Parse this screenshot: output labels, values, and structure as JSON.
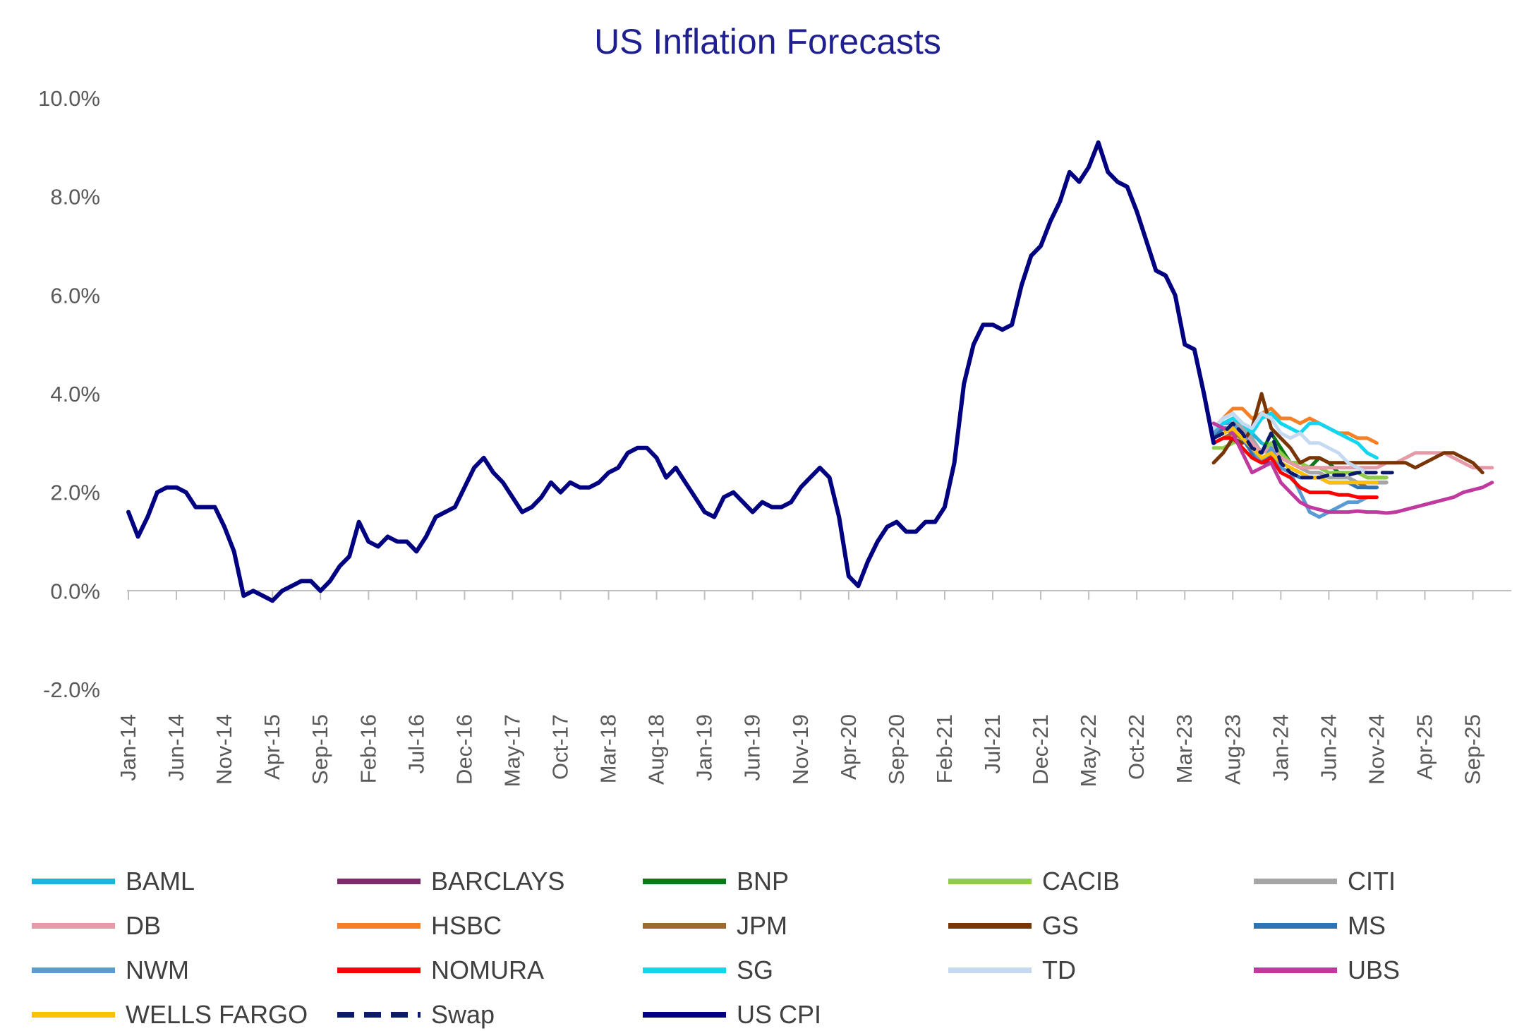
{
  "chart_data": {
    "type": "line",
    "title": "US Inflation Forecasts",
    "xlabel": "",
    "ylabel": "",
    "ylim": [
      -2.0,
      10.0
    ],
    "y_ticks": [
      "10.0%",
      "8.0%",
      "6.0%",
      "4.0%",
      "2.0%",
      "0.0%",
      "-2.0%"
    ],
    "x_range": [
      "2014-01",
      "2026-01"
    ],
    "x_ticks": [
      "Jan-14",
      "Jun-14",
      "Nov-14",
      "Apr-15",
      "Sep-15",
      "Feb-16",
      "Jul-16",
      "Dec-16",
      "May-17",
      "Oct-17",
      "Mar-18",
      "Aug-18",
      "Jan-19",
      "Jun-19",
      "Nov-19",
      "Apr-20",
      "Sep-20",
      "Feb-21",
      "Jul-21",
      "Dec-21",
      "May-22",
      "Oct-22",
      "Mar-23",
      "Aug-23",
      "Jan-24",
      "Jun-24",
      "Nov-24",
      "Apr-25",
      "Sep-25"
    ],
    "grid": false,
    "legend_position": "bottom",
    "series": [
      {
        "name": "BAML",
        "color": "#1fb5d6",
        "dash": false,
        "start": "2023-06",
        "values": [
          3.3,
          3.5,
          3.6,
          3.4,
          3.2,
          3.0,
          2.9,
          2.7,
          2.6,
          2.5,
          2.4,
          2.4,
          2.3,
          2.3,
          2.3,
          2.2,
          2.2,
          2.2,
          2.2
        ]
      },
      {
        "name": "BARCLAYS",
        "color": "#7b2a6b",
        "dash": false,
        "start": "2023-06",
        "values": [
          3.2,
          3.3,
          3.3,
          3.1,
          2.8,
          2.6,
          2.6,
          2.5,
          2.4,
          2.3,
          2.3,
          2.3,
          2.2,
          2.2,
          2.2,
          2.2,
          2.2,
          2.2,
          2.2
        ]
      },
      {
        "name": "BNP",
        "color": "#0a7a18",
        "dash": false,
        "start": "2023-06",
        "values": [
          3.1,
          3.2,
          3.3,
          3.2,
          2.9,
          2.8,
          3.2,
          2.9,
          2.6,
          2.6,
          2.5,
          2.7,
          2.6,
          2.4,
          2.4,
          2.4,
          2.3,
          2.3,
          2.3
        ]
      },
      {
        "name": "CACIB",
        "color": "#8fcc4b",
        "dash": false,
        "start": "2023-06",
        "values": [
          2.9,
          2.9,
          3.0,
          3.1,
          2.9,
          2.8,
          3.0,
          2.8,
          2.6,
          2.6,
          2.5,
          2.5,
          2.4,
          2.4,
          2.4,
          2.4,
          2.3,
          2.3,
          2.3
        ]
      },
      {
        "name": "CITI",
        "color": "#a6a6a6",
        "dash": false,
        "start": "2023-06",
        "values": [
          3.3,
          3.4,
          3.5,
          3.3,
          3.1,
          2.8,
          2.9,
          2.7,
          2.6,
          2.5,
          2.4,
          2.4,
          2.3,
          2.3,
          2.3,
          2.2,
          2.2,
          2.2,
          2.2
        ]
      },
      {
        "name": "DB",
        "color": "#e59aa8",
        "dash": false,
        "start": "2023-06",
        "values": [
          3.3,
          3.4,
          3.4,
          3.2,
          3.0,
          2.8,
          2.9,
          2.7,
          2.6,
          2.5,
          2.5,
          2.5,
          2.5,
          2.5,
          2.5,
          2.5,
          2.5,
          2.5,
          2.6,
          2.6,
          2.7,
          2.8,
          2.8,
          2.8,
          2.8,
          2.7,
          2.6,
          2.5,
          2.5,
          2.5
        ]
      },
      {
        "name": "HSBC",
        "color": "#f58025",
        "dash": false,
        "start": "2023-06",
        "values": [
          3.3,
          3.5,
          3.7,
          3.7,
          3.5,
          3.6,
          3.7,
          3.5,
          3.5,
          3.4,
          3.5,
          3.4,
          3.3,
          3.2,
          3.2,
          3.1,
          3.1,
          3.0
        ]
      },
      {
        "name": "JPM",
        "color": "#9c6a2e",
        "dash": false,
        "start": "2023-06",
        "values": [
          3.0,
          3.1,
          3.2,
          3.1,
          2.8,
          2.6,
          2.8,
          2.6,
          2.5,
          2.4,
          2.3,
          2.3,
          2.2,
          2.2,
          2.2,
          2.2,
          2.1,
          2.1
        ]
      },
      {
        "name": "GS",
        "color": "#7a3506",
        "dash": false,
        "start": "2023-06",
        "values": [
          2.6,
          2.8,
          3.1,
          3.0,
          3.3,
          4.0,
          3.3,
          3.1,
          2.9,
          2.6,
          2.7,
          2.7,
          2.6,
          2.6,
          2.6,
          2.6,
          2.6,
          2.6,
          2.6,
          2.6,
          2.6,
          2.5,
          2.6,
          2.7,
          2.8,
          2.8,
          2.7,
          2.6,
          2.4
        ]
      },
      {
        "name": "MS",
        "color": "#2e74b5",
        "dash": false,
        "start": "2023-06",
        "values": [
          3.1,
          3.3,
          3.3,
          3.1,
          2.8,
          2.6,
          2.8,
          2.5,
          2.4,
          2.3,
          2.3,
          2.3,
          2.2,
          2.2,
          2.2,
          2.1,
          2.1,
          2.1
        ]
      },
      {
        "name": "NWM",
        "color": "#5b9bd5",
        "dash": false,
        "start": "2023-06",
        "values": [
          3.2,
          3.4,
          3.4,
          3.2,
          2.9,
          2.6,
          2.9,
          2.5,
          2.4,
          2.0,
          1.6,
          1.5,
          1.6,
          1.7,
          1.8,
          1.8,
          1.9
        ]
      },
      {
        "name": "NOMURA",
        "color": "#ff0000",
        "dash": false,
        "start": "2023-06",
        "values": [
          3.0,
          3.1,
          3.1,
          2.9,
          2.7,
          2.6,
          2.7,
          2.4,
          2.3,
          2.1,
          2.0,
          2.0,
          2.0,
          1.95,
          1.95,
          1.9,
          1.9,
          1.9
        ]
      },
      {
        "name": "SG",
        "color": "#12d6ef",
        "dash": false,
        "start": "2023-06",
        "values": [
          3.3,
          3.4,
          3.5,
          3.4,
          3.2,
          3.5,
          3.6,
          3.4,
          3.3,
          3.2,
          3.4,
          3.4,
          3.3,
          3.2,
          3.1,
          3.0,
          2.8,
          2.7
        ]
      },
      {
        "name": "TD",
        "color": "#c5d9f1",
        "dash": false,
        "start": "2023-06",
        "values": [
          3.3,
          3.5,
          3.6,
          3.4,
          3.3,
          3.6,
          3.5,
          3.2,
          3.1,
          3.2,
          3.0,
          3.0,
          2.9,
          2.8,
          2.6,
          2.5,
          2.4
        ]
      },
      {
        "name": "UBS",
        "color": "#c0399e",
        "dash": false,
        "start": "2023-06",
        "values": [
          3.4,
          3.3,
          3.2,
          2.8,
          2.4,
          2.5,
          2.6,
          2.2,
          2.0,
          1.8,
          1.7,
          1.65,
          1.6,
          1.6,
          1.6,
          1.62,
          1.6,
          1.6,
          1.58,
          1.6,
          1.65,
          1.7,
          1.75,
          1.8,
          1.85,
          1.9,
          2.0,
          2.05,
          2.1,
          2.2
        ]
      },
      {
        "name": "WELLS FARGO",
        "color": "#ffc000",
        "dash": false,
        "start": "2023-06",
        "values": [
          3.1,
          3.2,
          3.3,
          3.1,
          2.9,
          2.7,
          2.8,
          2.6,
          2.5,
          2.4,
          2.3,
          2.3,
          2.2,
          2.2,
          2.2,
          2.2,
          2.2,
          2.2
        ]
      },
      {
        "name": "Swap",
        "color": "#0c1a6e",
        "dash": true,
        "start": "2023-06",
        "values": [
          3.1,
          3.2,
          3.4,
          3.2,
          2.9,
          2.8,
          3.2,
          2.6,
          2.4,
          2.3,
          2.3,
          2.3,
          2.35,
          2.35,
          2.35,
          2.4,
          2.4,
          2.4,
          2.4,
          2.4
        ]
      },
      {
        "name": "US CPI",
        "color": "#000080",
        "dash": false,
        "start": "2014-01",
        "values": [
          1.6,
          1.1,
          1.5,
          2.0,
          2.1,
          2.1,
          2.0,
          1.7,
          1.7,
          1.7,
          1.3,
          0.8,
          -0.1,
          0.0,
          -0.1,
          -0.2,
          0.0,
          0.1,
          0.2,
          0.2,
          0.0,
          0.2,
          0.5,
          0.7,
          1.4,
          1.0,
          0.9,
          1.1,
          1.0,
          1.0,
          0.8,
          1.1,
          1.5,
          1.6,
          1.7,
          2.1,
          2.5,
          2.7,
          2.4,
          2.2,
          1.9,
          1.6,
          1.7,
          1.9,
          2.2,
          2.0,
          2.2,
          2.1,
          2.1,
          2.2,
          2.4,
          2.5,
          2.8,
          2.9,
          2.9,
          2.7,
          2.3,
          2.5,
          2.2,
          1.9,
          1.6,
          1.5,
          1.9,
          2.0,
          1.8,
          1.6,
          1.8,
          1.7,
          1.7,
          1.8,
          2.1,
          2.3,
          2.5,
          2.3,
          1.5,
          0.3,
          0.1,
          0.6,
          1.0,
          1.3,
          1.4,
          1.2,
          1.2,
          1.4,
          1.4,
          1.7,
          2.6,
          4.2,
          5.0,
          5.4,
          5.4,
          5.3,
          5.4,
          6.2,
          6.8,
          7.0,
          7.5,
          7.9,
          8.5,
          8.3,
          8.6,
          9.1,
          8.5,
          8.3,
          8.2,
          7.7,
          7.1,
          6.5,
          6.4,
          6.0,
          5.0,
          4.9,
          4.0,
          3.0
        ]
      }
    ]
  }
}
